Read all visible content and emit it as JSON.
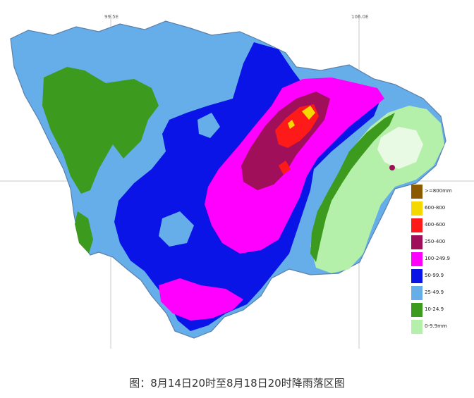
{
  "map": {
    "lon_labels": [
      "99.5E",
      "106.0E"
    ],
    "legend": [
      {
        "label": ">=800mm",
        "color": "#8B5A00"
      },
      {
        "label": "600-800",
        "color": "#F5D800"
      },
      {
        "label": "400-600",
        "color": "#FF1A1A"
      },
      {
        "label": "250-400",
        "color": "#A0105A"
      },
      {
        "label": "100-249.9",
        "color": "#FF00FF"
      },
      {
        "label": "50-99.9",
        "color": "#0A14E6"
      },
      {
        "label": "25-49.9",
        "color": "#66AEEA"
      },
      {
        "label": "10-24.9",
        "color": "#3C9A1E"
      },
      {
        "label": "0-9.9mm",
        "color": "#B4F0AA"
      }
    ]
  },
  "caption": "图：8月14日20时至8月18日20时降雨落区图"
}
